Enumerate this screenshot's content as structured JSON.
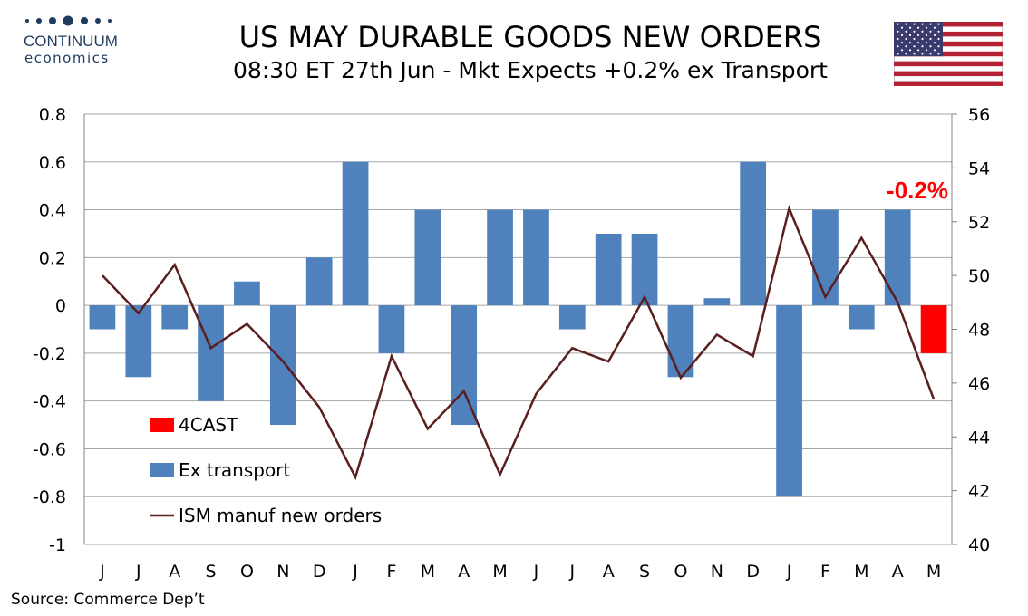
{
  "header": {
    "title": "US MAY DURABLE GOODS NEW ORDERS",
    "subtitle": "08:30 ET 27th Jun - Mkt Expects +0.2% ex Transport"
  },
  "logo": {
    "name": "CONTINUUM",
    "sub": "economics",
    "icon": "dots-logo-icon"
  },
  "flag": {
    "icon": "us-flag-icon"
  },
  "source": "Source: Commerce Dep’t",
  "chart_data": {
    "type": "bar",
    "categories": [
      "J",
      "J",
      "A",
      "S",
      "O",
      "N",
      "D",
      "J",
      "F",
      "M",
      "A",
      "M",
      "J",
      "J",
      "A",
      "S",
      "O",
      "N",
      "D",
      "J",
      "F",
      "M",
      "A",
      "M"
    ],
    "y_left": {
      "ylim": [
        -1,
        0.8
      ],
      "ticks": [
        "0.8",
        "0.6",
        "0.4",
        "0.2",
        "0",
        "-0.2",
        "-0.4",
        "-0.6",
        "-0.8",
        "-1"
      ]
    },
    "y_right": {
      "ylim": [
        40,
        56
      ],
      "ticks": [
        "56",
        "54",
        "52",
        "50",
        "48",
        "46",
        "44",
        "42",
        "40"
      ]
    },
    "series": [
      {
        "name": "4CAST",
        "type": "bar",
        "color": "#ff0000",
        "values": [
          null,
          null,
          null,
          null,
          null,
          null,
          null,
          null,
          null,
          null,
          null,
          null,
          null,
          null,
          null,
          null,
          null,
          null,
          null,
          null,
          null,
          null,
          null,
          -0.2
        ]
      },
      {
        "name": "Ex transport",
        "type": "bar",
        "color": "#4f81bd",
        "values": [
          -0.1,
          -0.3,
          -0.1,
          -0.4,
          0.1,
          -0.5,
          0.2,
          0.6,
          -0.2,
          0.4,
          -0.5,
          0.4,
          0.4,
          -0.1,
          0.3,
          0.3,
          -0.3,
          0.03,
          0.6,
          -0.8,
          0.4,
          -0.1,
          0.4,
          null
        ]
      },
      {
        "name": "ISM manuf new orders",
        "type": "line",
        "axis": "right",
        "color": "#5a1e1e",
        "values": [
          50.0,
          48.6,
          50.4,
          47.3,
          48.2,
          46.8,
          45.1,
          42.5,
          47.0,
          44.3,
          45.7,
          42.6,
          45.6,
          47.3,
          46.8,
          49.2,
          46.2,
          47.8,
          47.0,
          52.5,
          49.2,
          51.4,
          49.0,
          45.4
        ]
      }
    ],
    "annotation": "-0.2%",
    "legend_position": "lower-left",
    "grid": true
  }
}
